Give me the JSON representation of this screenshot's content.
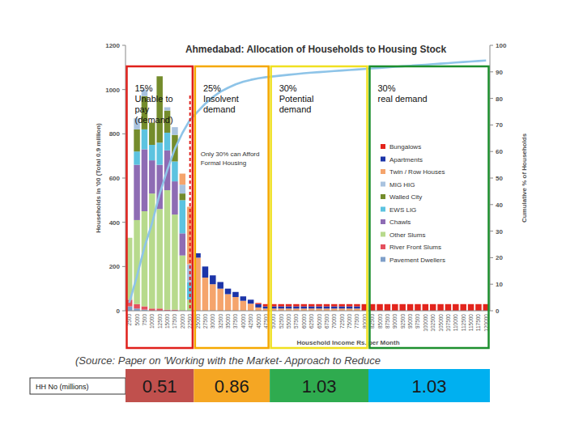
{
  "chart_data": {
    "type": "bar",
    "title": "Ahmedabad: Allocation of Households to Housing Stock",
    "x_label": "Household Income Rs. per Month",
    "y_label": "Households in '00 (Total 0.9 million)",
    "y2_label": "Cumulative % of Households",
    "stacked": true,
    "grid": false,
    "legend": "right",
    "categories": [
      "2500",
      "5000",
      "7500",
      "10000",
      "12500",
      "15000",
      "17500",
      "20000",
      "22500",
      "25000",
      "27500",
      "30000",
      "32500",
      "35000",
      "37500",
      "40000",
      "42500",
      "45000",
      "47500",
      "50000",
      "52500",
      "55000",
      "57500",
      "60000",
      "62500",
      "65000",
      "67500",
      "70000",
      "72500",
      "75000",
      "77500",
      "80000",
      "82500",
      "85000",
      "87500",
      "90000",
      "92500",
      "95000",
      "97500",
      "100000",
      "102500",
      "105000",
      "107500",
      "110000",
      "112500",
      "115000",
      "117500",
      "120000"
    ],
    "ylim": [
      0,
      1200
    ],
    "yticks": [
      0,
      200,
      400,
      600,
      800,
      1000,
      1200
    ],
    "y2lim": [
      0,
      100
    ],
    "y2ticks": [
      0,
      10,
      20,
      30,
      40,
      50,
      60,
      70,
      80,
      90,
      100
    ],
    "series": [
      {
        "name": "Bungalows",
        "color": "#e3241c",
        "values": [
          0,
          0,
          0,
          0,
          0,
          0,
          0,
          0,
          0,
          0,
          0,
          0,
          0,
          0,
          0,
          0,
          0,
          5,
          10,
          10,
          10,
          10,
          10,
          10,
          10,
          10,
          10,
          10,
          10,
          10,
          10,
          30,
          30,
          30,
          30,
          30,
          30,
          30,
          30,
          30,
          30,
          30,
          30,
          30,
          30,
          30,
          30,
          30
        ]
      },
      {
        "name": "Apartments",
        "color": "#1c34a8",
        "values": [
          0,
          0,
          0,
          0,
          0,
          0,
          0,
          0,
          0,
          20,
          50,
          40,
          30,
          25,
          23,
          20,
          18,
          15,
          10,
          10,
          10,
          10,
          10,
          10,
          10,
          10,
          10,
          10,
          10,
          10,
          10,
          0,
          0,
          0,
          0,
          0,
          0,
          0,
          0,
          0,
          0,
          0,
          0,
          0,
          0,
          0,
          0,
          0
        ]
      },
      {
        "name": "Twin / Row Houses",
        "color": "#f5a46c",
        "values": [
          0,
          0,
          0,
          0,
          0,
          0,
          0,
          50,
          260,
          240,
          150,
          120,
          100,
          75,
          62,
          45,
          32,
          15,
          10,
          10,
          10,
          10,
          10,
          10,
          10,
          10,
          10,
          10,
          10,
          10,
          10,
          0,
          0,
          0,
          0,
          0,
          0,
          0,
          0,
          0,
          0,
          0,
          0,
          0,
          0,
          0,
          0,
          0
        ]
      },
      {
        "name": "MIG HIG",
        "color": "#a9c3df",
        "values": [
          0,
          50,
          30,
          0,
          0,
          15,
          35,
          40,
          80,
          0,
          0,
          0,
          0,
          0,
          0,
          0,
          0,
          0,
          0,
          0,
          0,
          0,
          0,
          0,
          0,
          0,
          0,
          0,
          0,
          0,
          0,
          0,
          0,
          0,
          0,
          0,
          0,
          0,
          0,
          0,
          0,
          0,
          0,
          0,
          0,
          0,
          0,
          0
        ]
      },
      {
        "name": "Walled City",
        "color": "#748c2c",
        "values": [
          0,
          100,
          150,
          100,
          300,
          100,
          120,
          30,
          0,
          0,
          0,
          0,
          0,
          0,
          0,
          0,
          0,
          0,
          0,
          0,
          0,
          0,
          0,
          0,
          0,
          0,
          0,
          0,
          0,
          0,
          0,
          0,
          0,
          0,
          0,
          0,
          0,
          0,
          0,
          0,
          0,
          0,
          0,
          0,
          0,
          0,
          0,
          0
        ]
      },
      {
        "name": "EWS LIG",
        "color": "#5cc3e0",
        "values": [
          0,
          60,
          90,
          70,
          100,
          80,
          90,
          150,
          80,
          0,
          0,
          0,
          0,
          0,
          0,
          0,
          0,
          0,
          0,
          0,
          0,
          0,
          0,
          0,
          0,
          0,
          0,
          0,
          0,
          0,
          0,
          0,
          0,
          0,
          0,
          0,
          0,
          0,
          0,
          0,
          0,
          0,
          0,
          0,
          0,
          0,
          0,
          0
        ]
      },
      {
        "name": "Chawls",
        "color": "#8e6cb4",
        "values": [
          0,
          250,
          280,
          150,
          200,
          180,
          150,
          100,
          0,
          0,
          0,
          0,
          0,
          0,
          0,
          0,
          0,
          0,
          0,
          0,
          0,
          0,
          0,
          0,
          0,
          0,
          0,
          0,
          0,
          0,
          0,
          0,
          0,
          0,
          0,
          0,
          0,
          0,
          0,
          0,
          0,
          0,
          0,
          0,
          0,
          0,
          0,
          0
        ]
      },
      {
        "name": "Other Slums",
        "color": "#b7da8c",
        "values": [
          280,
          380,
          430,
          520,
          450,
          540,
          430,
          250,
          50,
          0,
          0,
          0,
          0,
          0,
          0,
          0,
          0,
          0,
          0,
          0,
          0,
          0,
          0,
          0,
          0,
          0,
          0,
          0,
          0,
          0,
          0,
          0,
          0,
          0,
          0,
          0,
          0,
          0,
          0,
          0,
          0,
          0,
          0,
          0,
          0,
          0,
          0,
          0
        ]
      },
      {
        "name": "River Front Slums",
        "color": "#e4505e",
        "values": [
          30,
          20,
          15,
          10,
          10,
          5,
          5,
          0,
          0,
          0,
          0,
          0,
          0,
          0,
          0,
          0,
          0,
          0,
          0,
          0,
          0,
          0,
          0,
          0,
          0,
          0,
          0,
          0,
          0,
          0,
          0,
          0,
          0,
          0,
          0,
          0,
          0,
          0,
          0,
          0,
          0,
          0,
          0,
          0,
          0,
          0,
          0,
          0
        ]
      },
      {
        "name": "Pavement Dwellers",
        "color": "#7f9fc9",
        "values": [
          20,
          10,
          5,
          0,
          0,
          0,
          0,
          0,
          0,
          0,
          0,
          0,
          0,
          0,
          0,
          0,
          0,
          0,
          0,
          0,
          0,
          0,
          0,
          0,
          0,
          0,
          0,
          0,
          0,
          0,
          0,
          0,
          0,
          0,
          0,
          0,
          0,
          0,
          0,
          0,
          0,
          0,
          0,
          0,
          0,
          0,
          0,
          0
        ]
      },
      {
        "type": "line",
        "axis": "y2",
        "color": "#8ec4e8",
        "values": [
          3,
          13,
          24,
          33,
          44,
          53,
          61,
          67,
          72,
          75,
          78,
          80.5,
          82.5,
          84,
          85.3,
          86.3,
          87,
          87.6,
          88,
          88.3,
          88.6,
          88.9,
          89.2,
          89.5,
          89.7,
          89.9,
          90.1,
          90.3,
          90.5,
          90.7,
          90.9,
          91.1,
          91.3,
          91.5,
          91.7,
          91.9,
          92.1,
          92.3,
          92.5,
          92.7,
          92.9,
          93.1,
          93.3,
          93.5,
          93.7,
          93.9,
          94.1,
          94.3
        ]
      }
    ],
    "annotations": [
      {
        "lines": [
          "15%",
          "Unable to",
          "pay",
          "(demand)"
        ],
        "color": "#e0201b",
        "from": "2500",
        "to": "22500"
      },
      {
        "lines": [
          "25%",
          "Insolvent",
          "demand"
        ],
        "color": "#f5a800",
        "from": "25000",
        "to": "47500"
      },
      {
        "lines": [
          "30%",
          "Potential",
          "demand"
        ],
        "color": "#f0e020",
        "from": "50000",
        "to": "80000"
      },
      {
        "lines": [
          "30%",
          "real demand"
        ],
        "color": "#1d8f2e",
        "from": "82500",
        "to": "120000"
      },
      {
        "lines": [
          "Only 30% can Afford",
          "Formal Housing"
        ],
        "color": "#e0201b",
        "at": "22500",
        "line_style": "dashed"
      }
    ]
  },
  "source": "(Source: Paper on 'Working with the Market- Approach to Reduce",
  "hh_table": {
    "label": "HH No (millions)",
    "values": [
      0.51,
      0.86,
      1.03,
      1.03
    ],
    "colors": [
      "#c0504d",
      "#f5a623",
      "#2fab4f",
      "#00b0f0"
    ]
  }
}
